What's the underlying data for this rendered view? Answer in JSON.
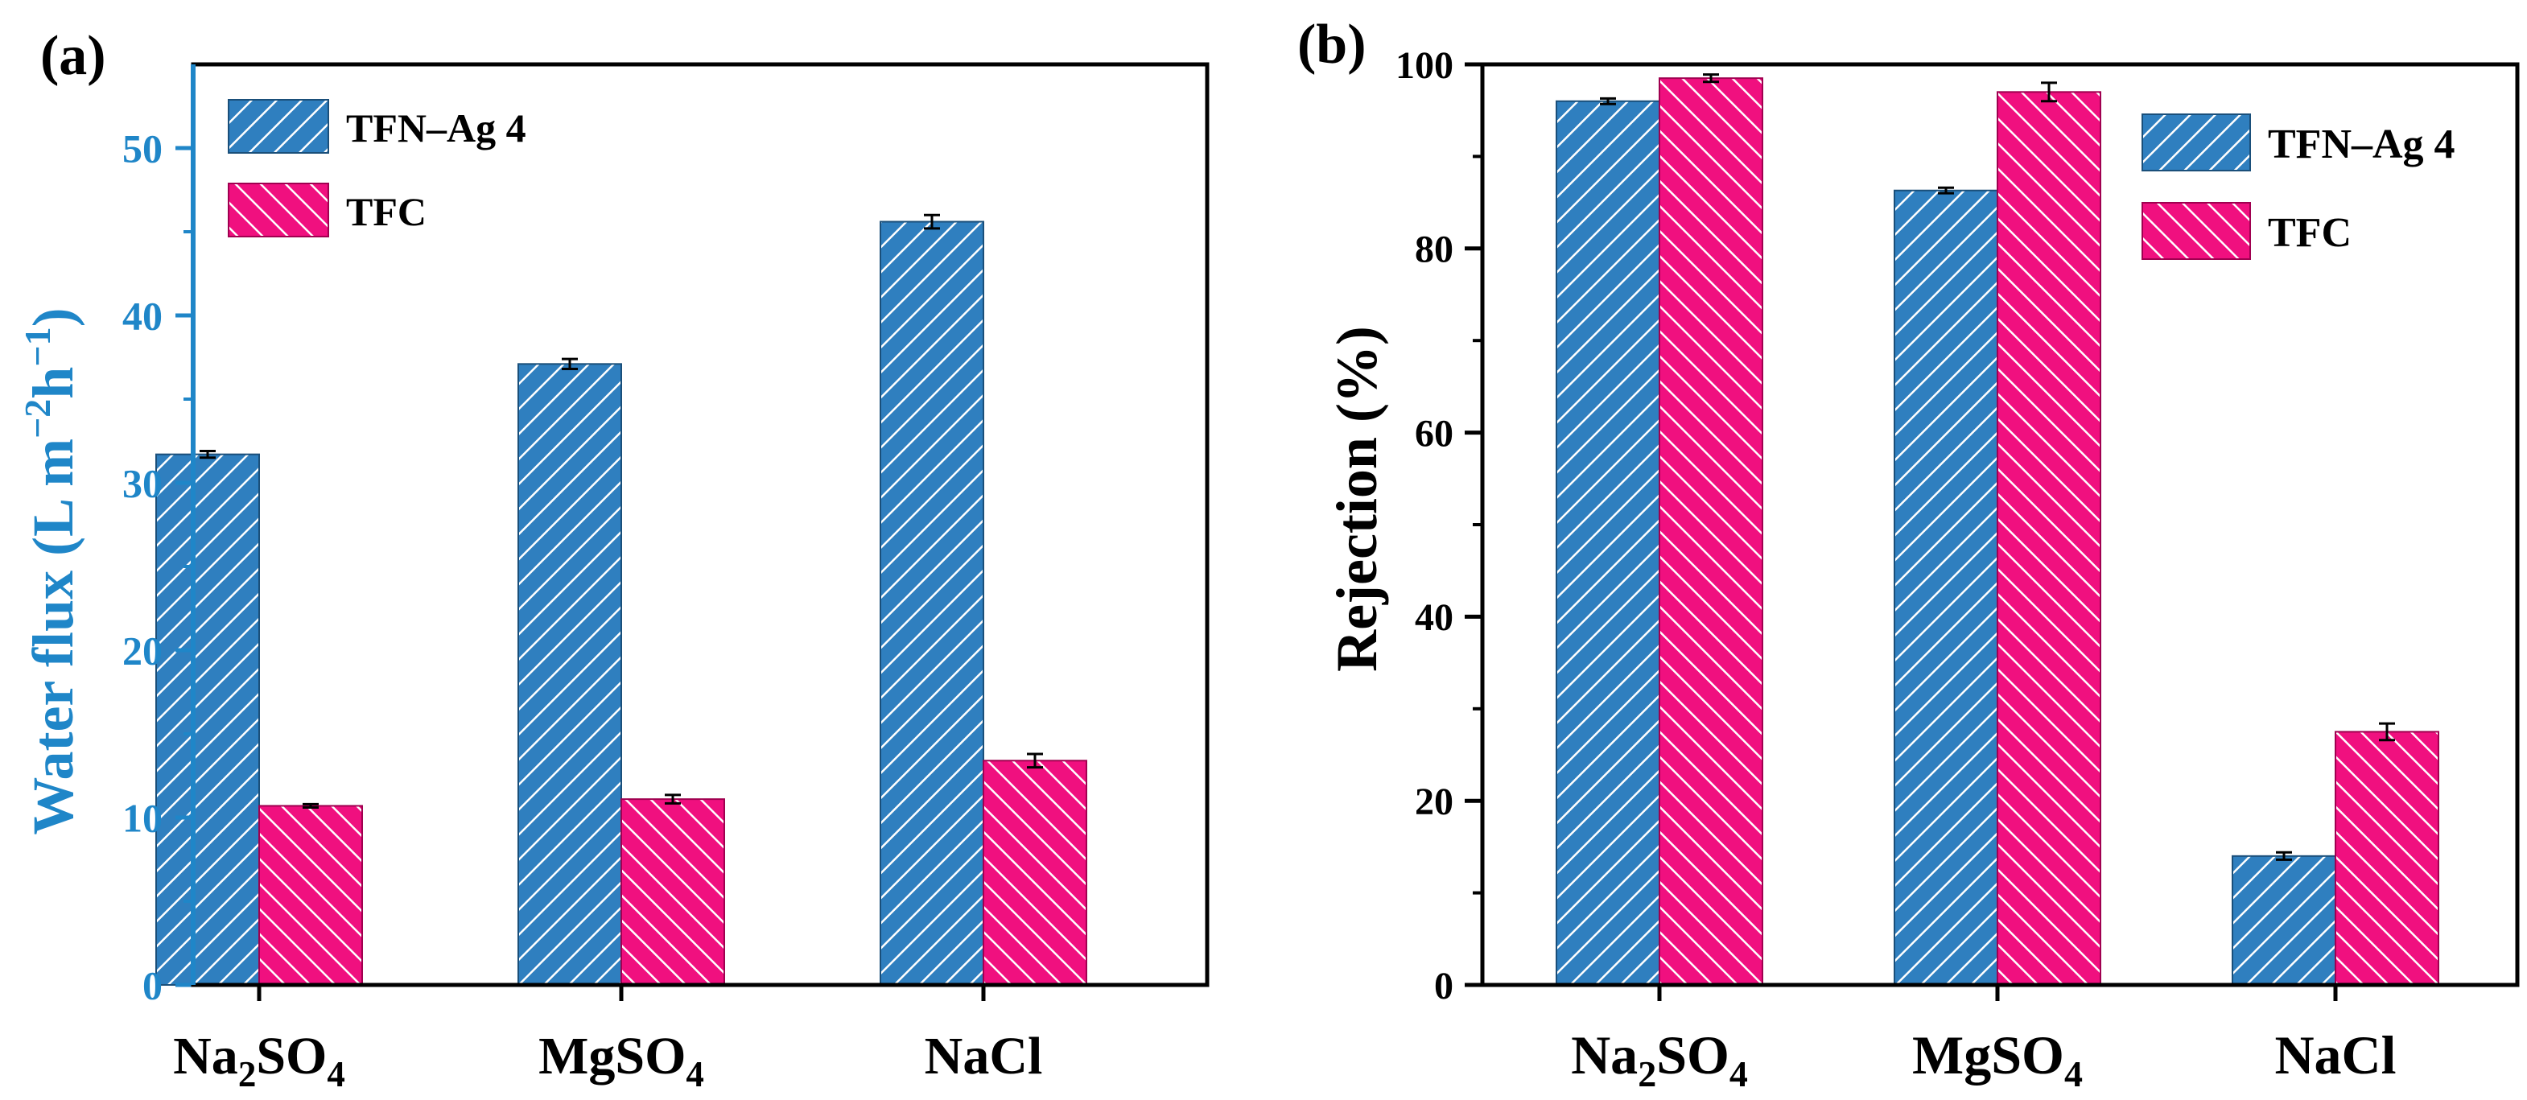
{
  "colors": {
    "series1": "#2F7FBF",
    "series2": "#F0107F",
    "left_axis": "#1F86C8",
    "axis": "#000000",
    "hatch": "#ffffff"
  },
  "chart_data": [
    {
      "type": "bar",
      "panel_label": "(a)",
      "title": "",
      "categories": [
        "Na2SO4",
        "MgSO4",
        "NaCl"
      ],
      "category_labels": [
        {
          "main": "Na",
          "sub": "2",
          "main2": "SO",
          "sub2": "4"
        },
        {
          "main": "MgSO",
          "sub": "4",
          "main2": "",
          "sub2": ""
        },
        {
          "main": "NaCl",
          "sub": "",
          "main2": "",
          "sub2": ""
        }
      ],
      "series": [
        {
          "name": "TFN–Ag 4",
          "values": [
            31.7,
            37.1,
            45.6
          ],
          "errors": [
            0.2,
            0.3,
            0.4
          ]
        },
        {
          "name": "TFC",
          "values": [
            10.7,
            11.1,
            13.4
          ],
          "errors": [
            0.1,
            0.25,
            0.4
          ]
        }
      ],
      "xlabel": "",
      "ylabel": {
        "prefix": "Water flux (L m",
        "sup1": "−2",
        "mid": "h",
        "sup2": "−1",
        "suffix": ")"
      },
      "ylim": [
        0,
        55
      ],
      "yticks": [
        "0",
        "10",
        "20",
        "30",
        "40",
        "50"
      ],
      "legend_position": "top-left"
    },
    {
      "type": "bar",
      "panel_label": "(b)",
      "title": "",
      "categories": [
        "Na2SO4",
        "MgSO4",
        "NaCl"
      ],
      "category_labels": [
        {
          "main": "Na",
          "sub": "2",
          "main2": "SO",
          "sub2": "4"
        },
        {
          "main": "MgSO",
          "sub": "4",
          "main2": "",
          "sub2": ""
        },
        {
          "main": "NaCl",
          "sub": "",
          "main2": "",
          "sub2": ""
        }
      ],
      "series": [
        {
          "name": "TFN–Ag 4",
          "values": [
            96.0,
            86.3,
            14.0
          ],
          "errors": [
            0.3,
            0.3,
            0.4
          ]
        },
        {
          "name": "TFC",
          "values": [
            98.5,
            97.0,
            27.5
          ],
          "errors": [
            0.4,
            1.0,
            0.9
          ]
        }
      ],
      "xlabel": "",
      "ylabel": {
        "prefix": "Rejection (%)",
        "sup1": "",
        "mid": "",
        "sup2": "",
        "suffix": ""
      },
      "ylim": [
        0,
        100
      ],
      "yticks": [
        "0",
        "20",
        "40",
        "60",
        "80",
        "100"
      ],
      "legend_position": "top-right"
    }
  ]
}
